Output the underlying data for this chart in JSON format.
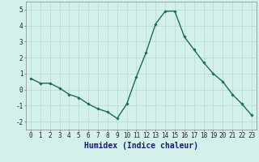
{
  "xlabel": "Humidex (Indice chaleur)",
  "x": [
    0,
    1,
    2,
    3,
    4,
    5,
    6,
    7,
    8,
    9,
    10,
    11,
    12,
    13,
    14,
    15,
    16,
    17,
    18,
    19,
    20,
    21,
    22,
    23
  ],
  "y": [
    0.7,
    0.4,
    0.4,
    0.1,
    -0.3,
    -0.5,
    -0.9,
    -1.2,
    -1.4,
    -1.8,
    -0.9,
    0.8,
    2.3,
    4.1,
    4.9,
    4.9,
    3.3,
    2.5,
    1.7,
    1.0,
    0.5,
    -0.3,
    -0.9,
    -1.6
  ],
  "line_color": "#1a6b5a",
  "marker": "D",
  "marker_size": 1.8,
  "line_width": 1.0,
  "bg_color": "#d4f0eb",
  "grid_color": "#b8ddd8",
  "tick_label_size": 5.5,
  "xlabel_size": 7.0,
  "ylim": [
    -2.5,
    5.5
  ],
  "yticks": [
    -2,
    -1,
    0,
    1,
    2,
    3,
    4,
    5
  ],
  "xticks": [
    0,
    1,
    2,
    3,
    4,
    5,
    6,
    7,
    8,
    9,
    10,
    11,
    12,
    13,
    14,
    15,
    16,
    17,
    18,
    19,
    20,
    21,
    22,
    23
  ]
}
